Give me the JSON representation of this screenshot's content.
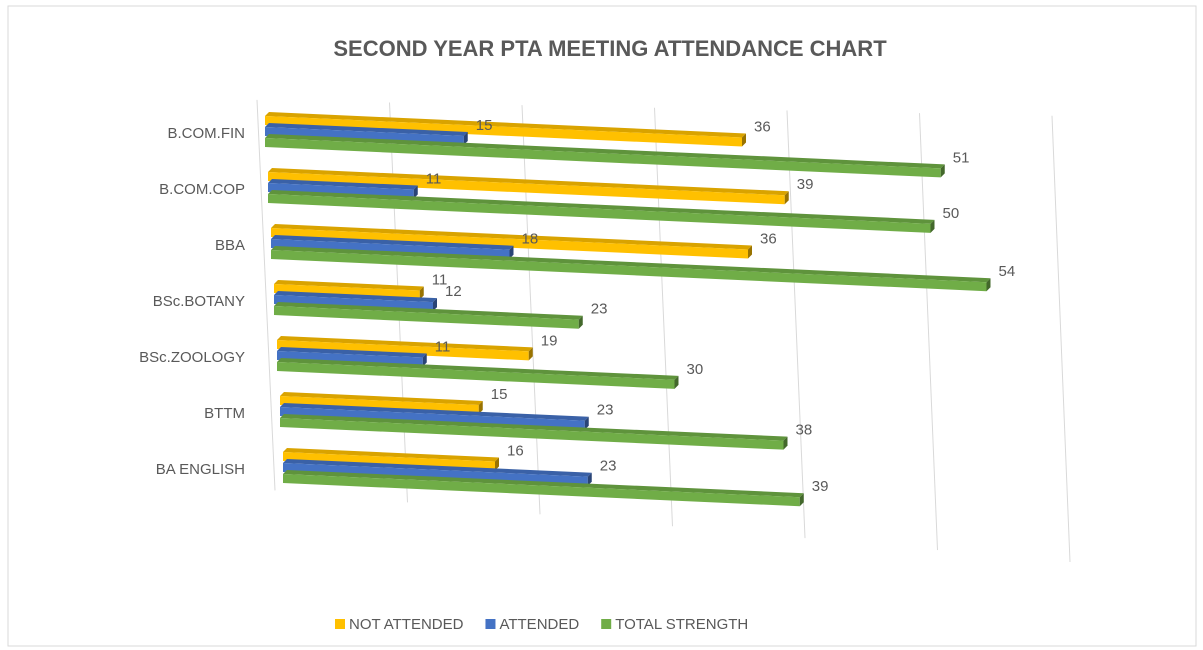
{
  "chart_data": {
    "type": "bar3d",
    "title": "SECOND YEAR PTA MEETING ATTENDANCE CHART",
    "categories": [
      "B.COM.FIN",
      "B.COM.COP",
      "BBA",
      "BSc.BOTANY",
      "BSc.ZOOLOGY",
      "BTTM",
      "BA ENGLISH"
    ],
    "series": [
      {
        "name": "NOT ATTENDED",
        "color": "#ffc000",
        "values": [
          36,
          39,
          36,
          11,
          19,
          15,
          16
        ]
      },
      {
        "name": "ATTENDED",
        "color": "#4472c4",
        "values": [
          15,
          11,
          18,
          12,
          11,
          23,
          23
        ]
      },
      {
        "name": "TOTAL STRENGTH",
        "color": "#70ad47",
        "values": [
          51,
          50,
          54,
          23,
          30,
          38,
          39
        ]
      }
    ],
    "xlim": [
      0,
      60
    ],
    "xticks": [
      0,
      10,
      20,
      30,
      40,
      50,
      60
    ],
    "grid": true,
    "legend": "bottom"
  }
}
